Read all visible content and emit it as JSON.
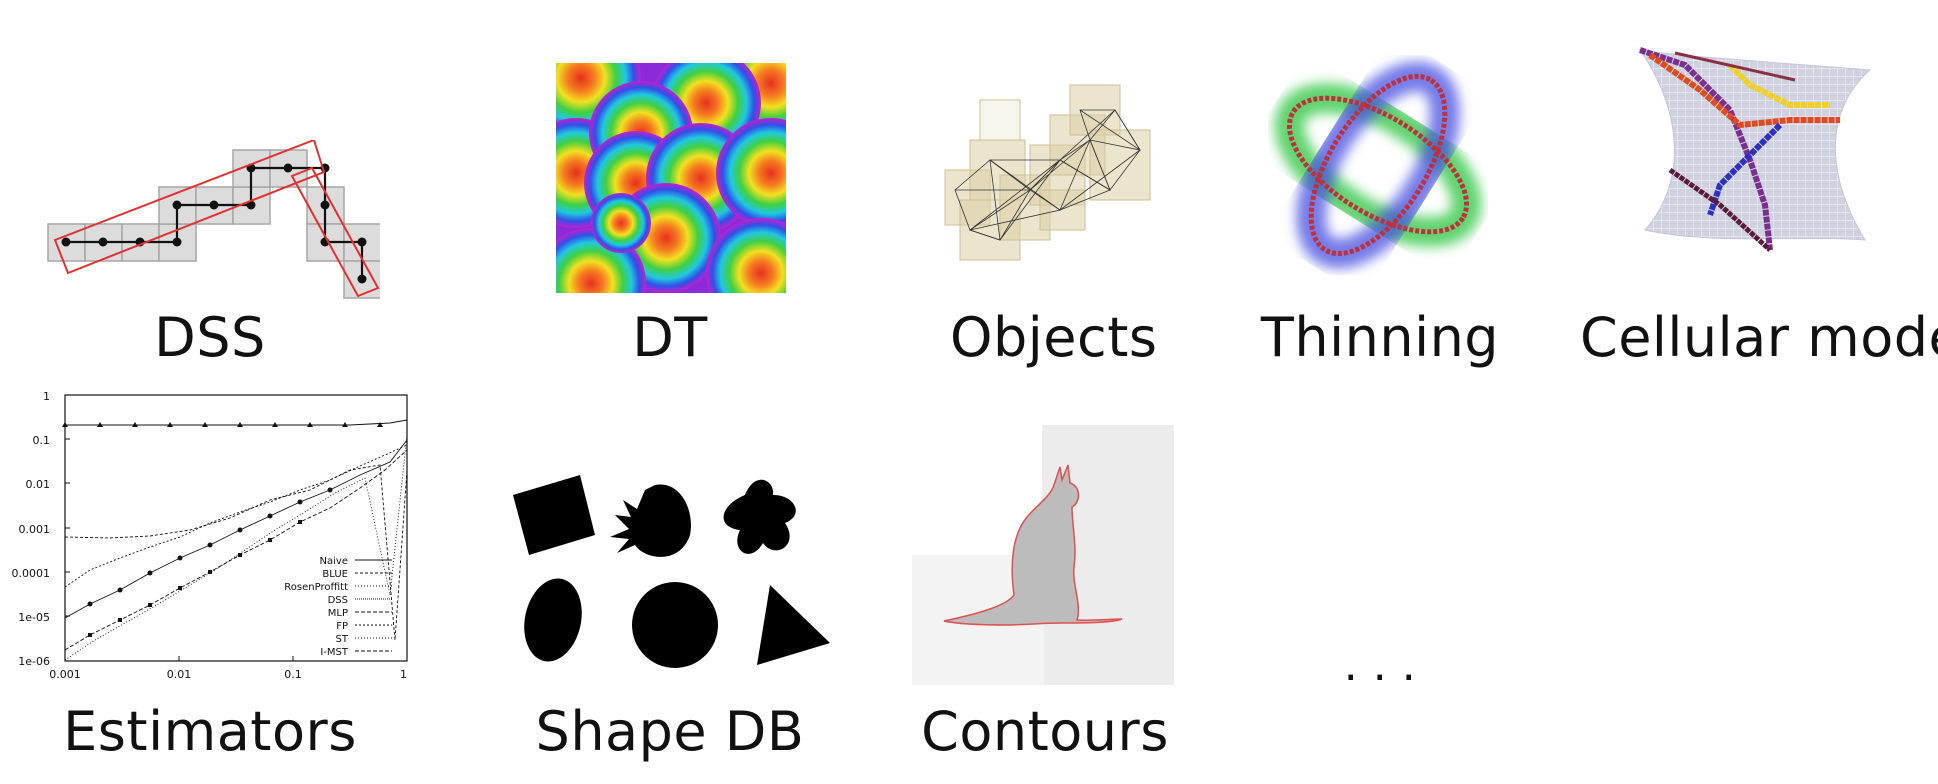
{
  "labels": {
    "dss": "DSS",
    "dt": "DT",
    "objects": "Objects",
    "thinning": "Thinning",
    "cellular": "Cellular model",
    "estimators": "Estimators",
    "shapedb": "Shape DB",
    "contours": "Contours",
    "more": ". . ."
  },
  "estimators_plot": {
    "y_ticks": [
      "1",
      "0.1",
      "0.01",
      "0.001",
      "0.0001",
      "1e-05",
      "1e-06"
    ],
    "x_ticks": [
      "0.001",
      "0.01",
      "0.1",
      "1"
    ],
    "legend": [
      "Naive",
      "BLUE",
      "RosenProffitt",
      "DSS",
      "MLP",
      "FP",
      "ST",
      "I-MST"
    ]
  },
  "colors": {
    "rect": "#e03030",
    "cell": "#d8d8d8",
    "objects": "#d9caa0",
    "thin_green": "#39c84a",
    "thin_blue": "#4650e0",
    "thin_red": "#c0303a"
  }
}
